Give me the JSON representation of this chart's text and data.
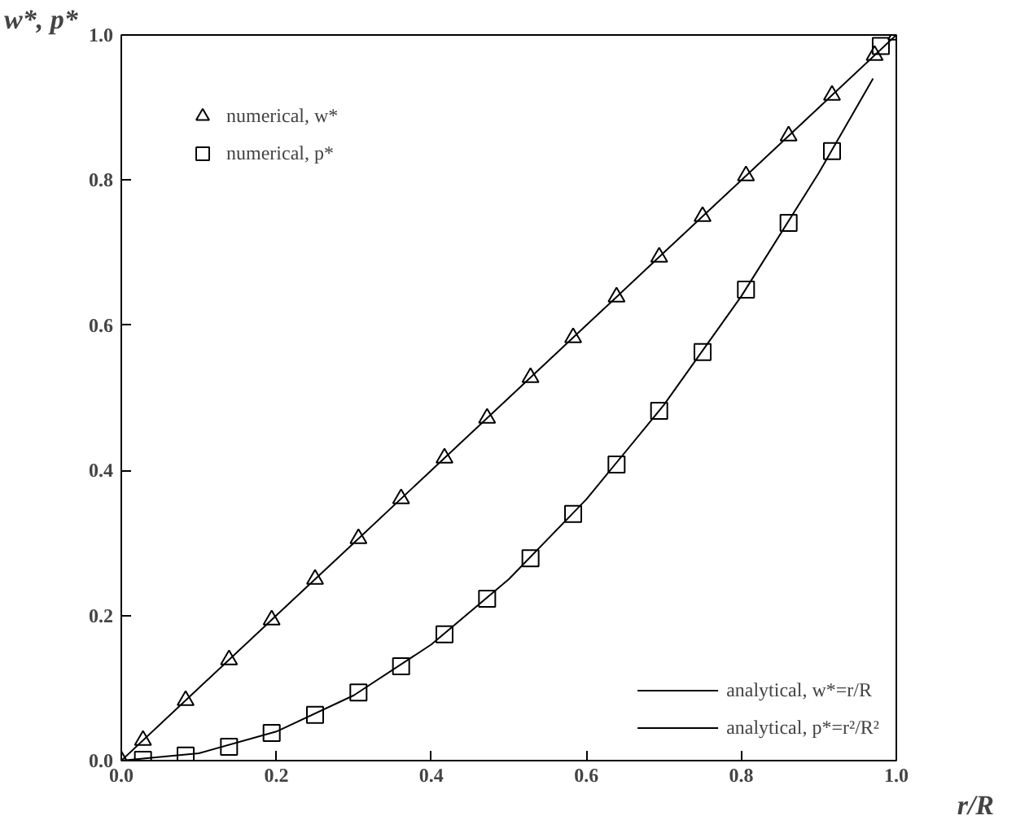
{
  "chart_data": {
    "type": "line",
    "xlabel": "r/R",
    "ylabel": "w*, p*",
    "xlim": [
      0.0,
      1.0
    ],
    "ylim": [
      0.0,
      1.0
    ],
    "xticks": [
      {
        "value": 0.0,
        "label": "0.0"
      },
      0.2,
      0.4,
      0.6,
      0.8,
      {
        "value": 1.0,
        "label": "1.0"
      }
    ],
    "yticks": [
      {
        "value": 0.0,
        "label": "0.0"
      },
      0.2,
      0.4,
      0.6,
      0.8,
      {
        "value": 1.0,
        "label": "1.0"
      }
    ],
    "grid": false,
    "legend": "bottom right",
    "series": [
      {
        "name": "numerical, w*",
        "type": "scatter",
        "marker": "triangle",
        "color": "#000000",
        "x": [
          0,
          0.028,
          0.083,
          0.139,
          0.194,
          0.25,
          0.306,
          0.361,
          0.417,
          0.472,
          0.528,
          0.583,
          0.639,
          0.694,
          0.75,
          0.806,
          0.861,
          0.917,
          0.972,
          1.0
        ],
        "values": [
          0,
          0.028,
          0.083,
          0.139,
          0.194,
          0.25,
          0.306,
          0.361,
          0.417,
          0.472,
          0.528,
          0.583,
          0.639,
          0.694,
          0.75,
          0.806,
          0.861,
          0.917,
          0.972,
          1.0
        ]
      },
      {
        "name": "numerical, p*",
        "type": "scatter",
        "marker": "square",
        "color": "#000000",
        "x": [
          0.028,
          0.083,
          0.139,
          0.194,
          0.25,
          0.306,
          0.361,
          0.417,
          0.472,
          0.528,
          0.583,
          0.639,
          0.694,
          0.75,
          0.806,
          0.861,
          0.917,
          0.98
        ],
        "values": [
          0.001,
          0.007,
          0.019,
          0.038,
          0.063,
          0.094,
          0.13,
          0.174,
          0.223,
          0.279,
          0.34,
          0.408,
          0.482,
          0.563,
          0.649,
          0.741,
          0.84,
          0.985
        ]
      },
      {
        "name": "analytical, w*=r/R",
        "color": "#000000",
        "x": [
          0,
          0.1,
          0.2,
          0.3,
          0.4,
          0.5,
          0.6,
          0.7,
          0.8,
          0.9,
          1.0
        ],
        "values": [
          0,
          0.1,
          0.2,
          0.3,
          0.4,
          0.5,
          0.6,
          0.7,
          0.8,
          0.9,
          1.0
        ]
      },
      {
        "name": "analytical, p*=r²/R²",
        "color": "#000000",
        "x": [
          0,
          0.1,
          0.2,
          0.3,
          0.4,
          0.5,
          0.6,
          0.7,
          0.8,
          0.9,
          0.97
        ],
        "values": [
          0,
          0.01,
          0.04,
          0.09,
          0.16,
          0.25,
          0.36,
          0.49,
          0.64,
          0.81,
          0.94
        ]
      }
    ]
  }
}
